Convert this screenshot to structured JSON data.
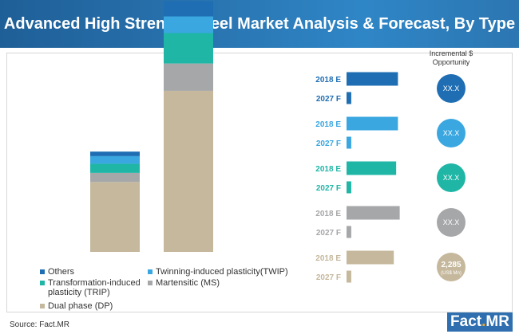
{
  "title": "Advanced High Strength Steel Market Analysis & Forecast, By Type",
  "opportunity_header": "Incremental $ Opportunity",
  "source": "Source: Fact.MR",
  "logo": {
    "part1": "Fact",
    "dot": ".",
    "part2": "MR"
  },
  "colors": {
    "header": "#2a77b4",
    "others": "#1f6eb3",
    "twip": "#3aa7e0",
    "trip": "#1fb6a6",
    "ms": "#a6a7a9",
    "dp": "#c5b89c",
    "logo": "#2f6fb0"
  },
  "legend": [
    {
      "label": "Others",
      "color_key": "others"
    },
    {
      "label": "Twinning-induced plasticity(TWIP)",
      "color_key": "twip"
    },
    {
      "label": "Transformation-induced plasticity (TRIP)",
      "color_key": "trip"
    },
    {
      "label": "Martensitic (MS)",
      "color_key": "ms"
    },
    {
      "label": "Dual phase (DP)",
      "color_key": "dp"
    }
  ],
  "chart_data": [
    {
      "type": "bar",
      "stacked": true,
      "categories": [
        "2018 E",
        "2027 F"
      ],
      "category_labels_shown": false,
      "series": [
        {
          "name": "Dual phase (DP)",
          "color_key": "dp",
          "values": [
            0.23,
            0.53
          ]
        },
        {
          "name": "Martensitic (MS)",
          "color_key": "ms",
          "values": [
            0.03,
            0.09
          ]
        },
        {
          "name": "Transformation-induced plasticity (TRIP)",
          "color_key": "trip",
          "values": [
            0.03,
            0.1
          ]
        },
        {
          "name": "Twinning-induced plasticity(TWIP)",
          "color_key": "twip",
          "values": [
            0.025,
            0.055
          ]
        },
        {
          "name": "Others",
          "color_key": "others",
          "values": [
            0.015,
            0.05
          ]
        }
      ],
      "ylim": [
        0,
        0.8
      ],
      "grid": false,
      "legend_position": "bottom-left"
    },
    {
      "type": "bar",
      "orientation": "horizontal",
      "groups": [
        {
          "name": "Others",
          "color_key": "others",
          "bars": [
            {
              "label": "2018 E",
              "value": 0.87
            },
            {
              "label": "2027 F",
              "value": 0.08
            }
          ],
          "opportunity": "XX.X",
          "sub": ""
        },
        {
          "name": "Twinning-induced plasticity(TWIP)",
          "color_key": "twip",
          "bars": [
            {
              "label": "2018 E",
              "value": 0.87
            },
            {
              "label": "2027 F",
              "value": 0.08
            }
          ],
          "opportunity": "XX.X",
          "sub": ""
        },
        {
          "name": "Transformation-induced plasticity (TRIP)",
          "color_key": "trip",
          "bars": [
            {
              "label": "2018 E",
              "value": 0.84
            },
            {
              "label": "2027 F",
              "value": 0.08
            }
          ],
          "opportunity": "XX.X",
          "sub": ""
        },
        {
          "name": "Martensitic (MS)",
          "color_key": "ms",
          "bars": [
            {
              "label": "2018 E",
              "value": 0.9
            },
            {
              "label": "2027 F",
              "value": 0.08
            }
          ],
          "opportunity": "XX.X",
          "sub": ""
        },
        {
          "name": "Dual phase (DP)",
          "color_key": "dp",
          "bars": [
            {
              "label": "2018 E",
              "value": 0.8
            },
            {
              "label": "2027 F",
              "value": 0.08
            }
          ],
          "opportunity": "2,285",
          "sub": "(US$ Mn)"
        }
      ],
      "xlim": [
        0,
        1
      ]
    }
  ]
}
